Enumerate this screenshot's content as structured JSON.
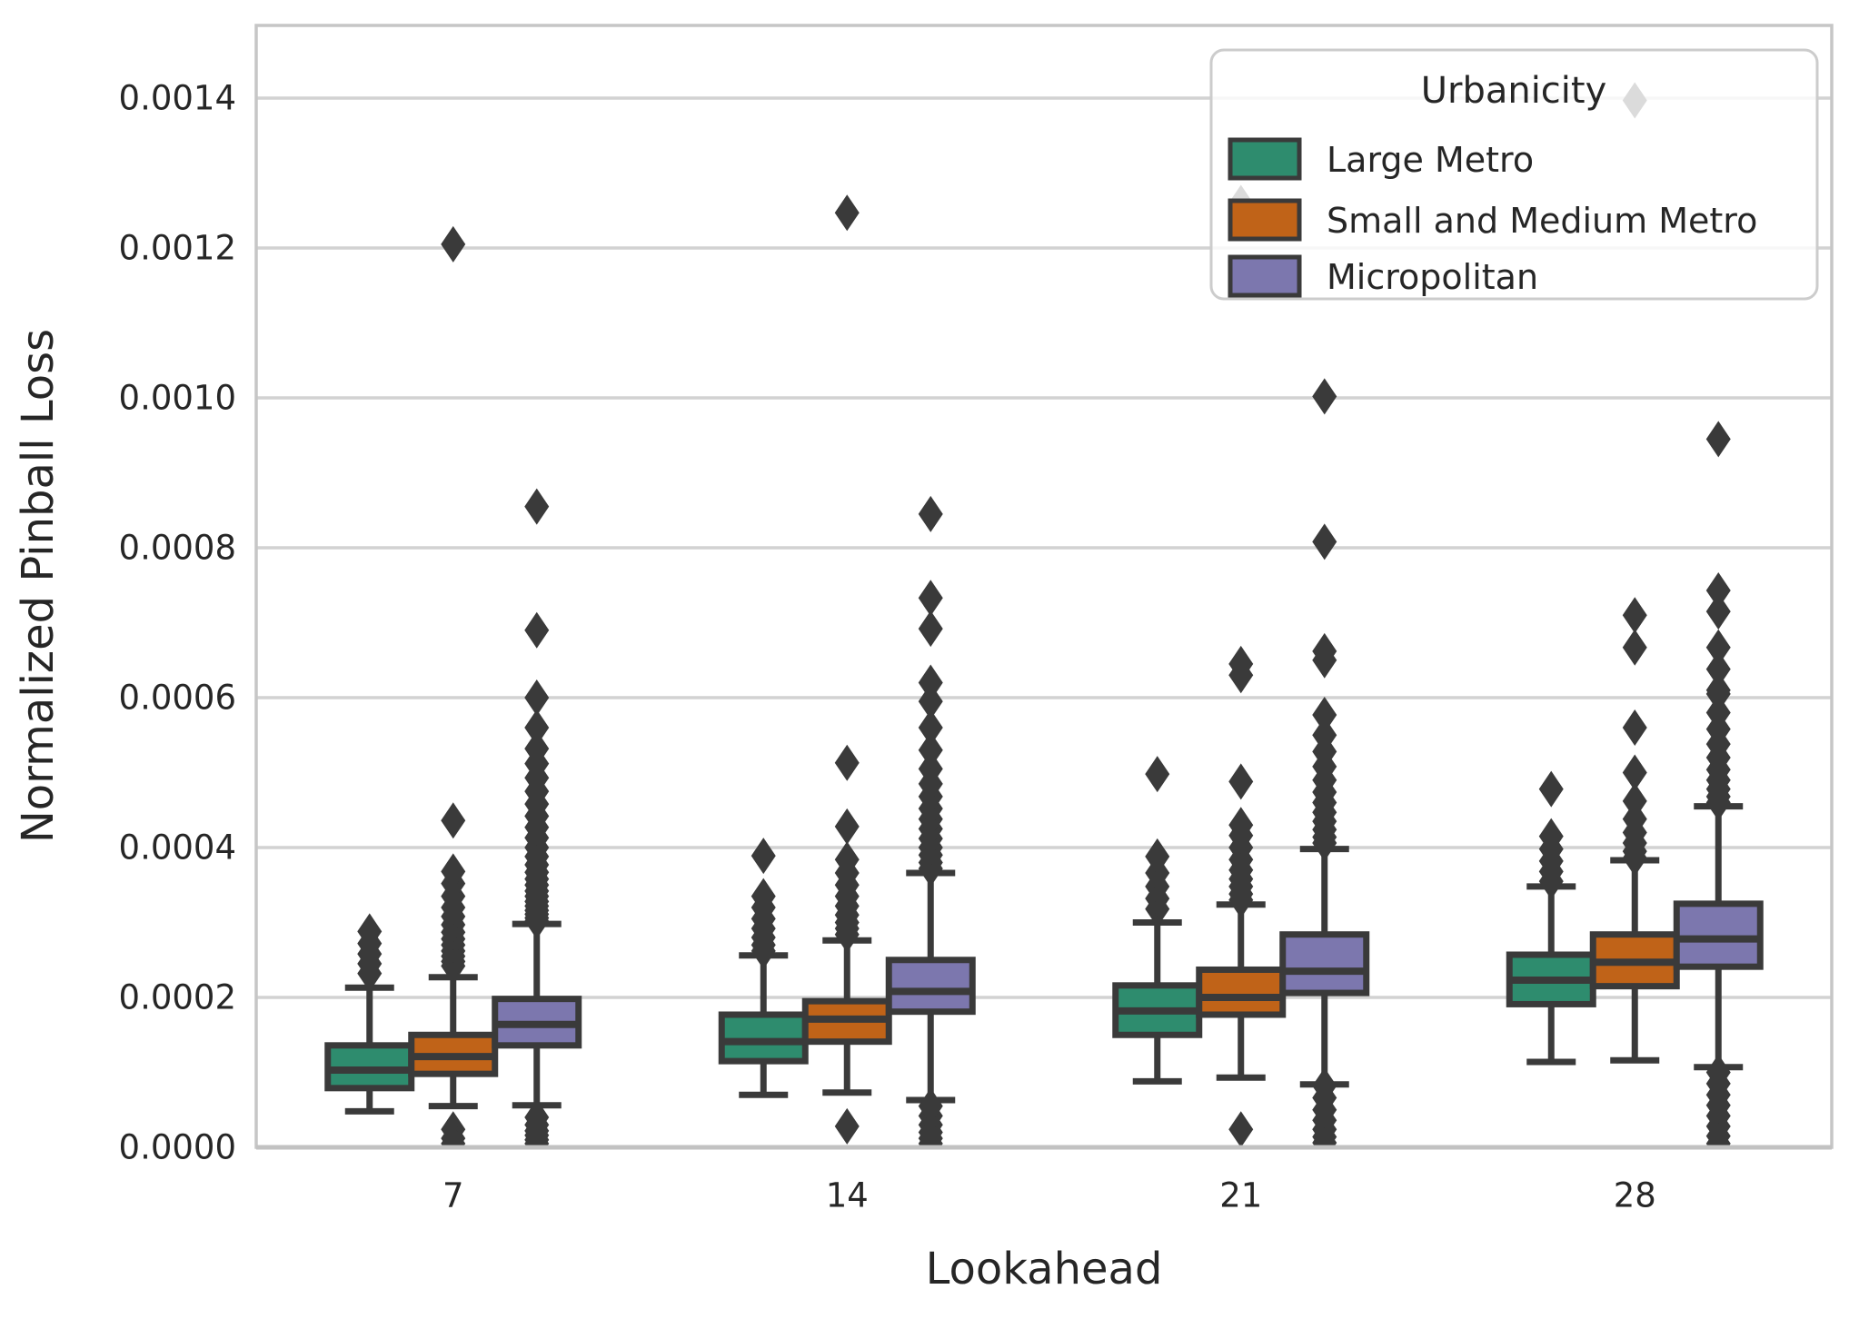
{
  "chart_data": {
    "type": "box",
    "title": "",
    "xlabel": "Lookahead",
    "ylabel": "Normalized Pinball Loss",
    "categories": [
      "7",
      "14",
      "21",
      "28"
    ],
    "ylim": [
      0,
      0.001497
    ],
    "grid": "horizontal",
    "yticks": {
      "values": [
        0.0,
        0.0002,
        0.0004,
        0.0006,
        0.0008,
        0.001,
        0.0012,
        0.0014
      ],
      "labels": [
        "0.0000",
        "0.0002",
        "0.0004",
        "0.0006",
        "0.0008",
        "0.0010",
        "0.0012",
        "0.0014"
      ]
    },
    "legend": {
      "title": "Urbanicity",
      "position": "upper right",
      "entries": [
        {
          "label": "Large Metro",
          "color": "#2e8c6e"
        },
        {
          "label": "Small and Medium Metro",
          "color": "#c06318"
        },
        {
          "label": "Micropolitan",
          "color": "#7c77ae"
        }
      ]
    },
    "colors": {
      "edge": "#3a3a3a",
      "grid": "#d2d2d2",
      "spine": "#c6c6c6",
      "text": "#262626"
    },
    "series": [
      {
        "name": "Large Metro",
        "color": "#2e8c6e",
        "boxes": [
          {
            "whislo": 4.8e-05,
            "q1": 7.9e-05,
            "med": 0.000103,
            "q3": 0.000136,
            "whishi": 0.000213,
            "fliers_high": [
              0.000232,
              0.000245,
              0.000258,
              0.000272,
              0.000288
            ],
            "fliers_low": []
          },
          {
            "whislo": 7e-05,
            "q1": 0.000115,
            "med": 0.000141,
            "q3": 0.000177,
            "whishi": 0.000256,
            "fliers_high": [
              0.000262,
              0.00027,
              0.00028,
              0.000292,
              0.000305,
              0.00032,
              0.000335,
              0.000389
            ],
            "fliers_low": []
          },
          {
            "whislo": 8.8e-05,
            "q1": 0.00015,
            "med": 0.000182,
            "q3": 0.000216,
            "whishi": 0.0003,
            "fliers_high": [
              0.000318,
              0.000332,
              0.000348,
              0.000366,
              0.000388,
              0.000498
            ],
            "fliers_low": []
          },
          {
            "whislo": 0.000114,
            "q1": 0.000191,
            "med": 0.000223,
            "q3": 0.000257,
            "whishi": 0.000348,
            "fliers_high": [
              0.000355,
              0.000368,
              0.000382,
              0.000398,
              0.000415,
              0.000478
            ],
            "fliers_low": []
          }
        ]
      },
      {
        "name": "Small and Medium Metro",
        "color": "#c06318",
        "boxes": [
          {
            "whislo": 5.5e-05,
            "q1": 9.8e-05,
            "med": 0.000121,
            "q3": 0.00015,
            "whishi": 0.000227,
            "fliers_high": [
              0.000242,
              0.000248,
              0.000255,
              0.000262,
              0.00027,
              0.000278,
              0.000287,
              0.000297,
              0.000308,
              0.00032,
              0.000335,
              0.000352,
              0.000368,
              0.000436,
              0.001205
            ],
            "fliers_low": [
              2.4e-05,
              1.2e-05,
              5e-06
            ]
          },
          {
            "whislo": 7.3e-05,
            "q1": 0.000141,
            "med": 0.000171,
            "q3": 0.000195,
            "whishi": 0.000276,
            "fliers_high": [
              0.000284,
              0.000292,
              0.0003,
              0.00031,
              0.000322,
              0.000335,
              0.00035,
              0.000366,
              0.000384,
              0.000428,
              0.000513,
              0.001247
            ],
            "fliers_low": [
              2.8e-05
            ]
          },
          {
            "whislo": 9.3e-05,
            "q1": 0.000177,
            "med": 0.0002,
            "q3": 0.000237,
            "whishi": 0.000324,
            "fliers_high": [
              0.00033,
              0.000338,
              0.000348,
              0.000358,
              0.00037,
              0.000384,
              0.0004,
              0.000416,
              0.00043,
              0.000488,
              0.00063,
              0.000645,
              0.00126
            ],
            "fliers_low": [
              2.4e-05
            ]
          },
          {
            "whislo": 0.000116,
            "q1": 0.000215,
            "med": 0.000247,
            "q3": 0.000284,
            "whishi": 0.000383,
            "fliers_high": [
              0.000386,
              0.000395,
              0.000406,
              0.00042,
              0.000438,
              0.000462,
              0.0005,
              0.00056,
              0.000667,
              0.00071,
              0.001397
            ],
            "fliers_low": []
          }
        ]
      },
      {
        "name": "Micropolitan",
        "color": "#7c77ae",
        "boxes": [
          {
            "whislo": 5.6e-05,
            "q1": 0.000136,
            "med": 0.000164,
            "q3": 0.000198,
            "whishi": 0.000298,
            "fliers_high": [
              0.000302,
              0.000306,
              0.000311,
              0.000316,
              0.000322,
              0.000328,
              0.000335,
              0.000342,
              0.00035,
              0.000358,
              0.000367,
              0.000377,
              0.000388,
              0.0004,
              0.000413,
              0.000427,
              0.000442,
              0.000458,
              0.000475,
              0.000493,
              0.000512,
              0.000532,
              0.00056,
              0.0006,
              0.00069,
              0.000855
            ],
            "fliers_low": [
              5e-06,
              1e-05,
              1.6e-05,
              2.2e-05,
              3e-05,
              4e-05
            ]
          },
          {
            "whislo": 6.3e-05,
            "q1": 0.000181,
            "med": 0.000208,
            "q3": 0.00025,
            "whishi": 0.000366,
            "fliers_high": [
              0.000372,
              0.00038,
              0.00039,
              0.0004,
              0.000412,
              0.000425,
              0.000438,
              0.000452,
              0.000468,
              0.000485,
              0.000505,
              0.00053,
              0.00056,
              0.000595,
              0.00062,
              0.000692,
              0.000733,
              0.000845
            ],
            "fliers_low": [
              5e-06,
              1.2e-05,
              2e-05,
              3e-05,
              4.2e-05,
              5.5e-05
            ]
          },
          {
            "whislo": 8.4e-05,
            "q1": 0.000206,
            "med": 0.000235,
            "q3": 0.000284,
            "whishi": 0.000398,
            "fliers_high": [
              0.000406,
              0.000414,
              0.000424,
              0.000435,
              0.000447,
              0.00046,
              0.000474,
              0.00049,
              0.000508,
              0.000528,
              0.00055,
              0.000577,
              0.00065,
              0.000662,
              0.000808,
              0.001002
            ],
            "fliers_low": [
              6e-06,
              1.4e-05,
              2.4e-05,
              3.6e-05,
              5e-05,
              6.6e-05,
              8.2e-05
            ]
          },
          {
            "whislo": 0.000107,
            "q1": 0.000241,
            "med": 0.000278,
            "q3": 0.000325,
            "whishi": 0.000455,
            "fliers_high": [
              0.00046,
              0.000468,
              0.000478,
              0.00049,
              0.000504,
              0.00052,
              0.000538,
              0.000558,
              0.00058,
              0.000605,
              0.00061,
              0.000638,
              0.000667,
              0.000715,
              0.000743,
              0.000945
            ],
            "fliers_low": [
              5e-06,
              1.5e-05,
              2.8e-05,
              4.2e-05,
              5.6e-05,
              7e-05,
              8.5e-05,
              0.0001
            ]
          }
        ]
      }
    ]
  }
}
